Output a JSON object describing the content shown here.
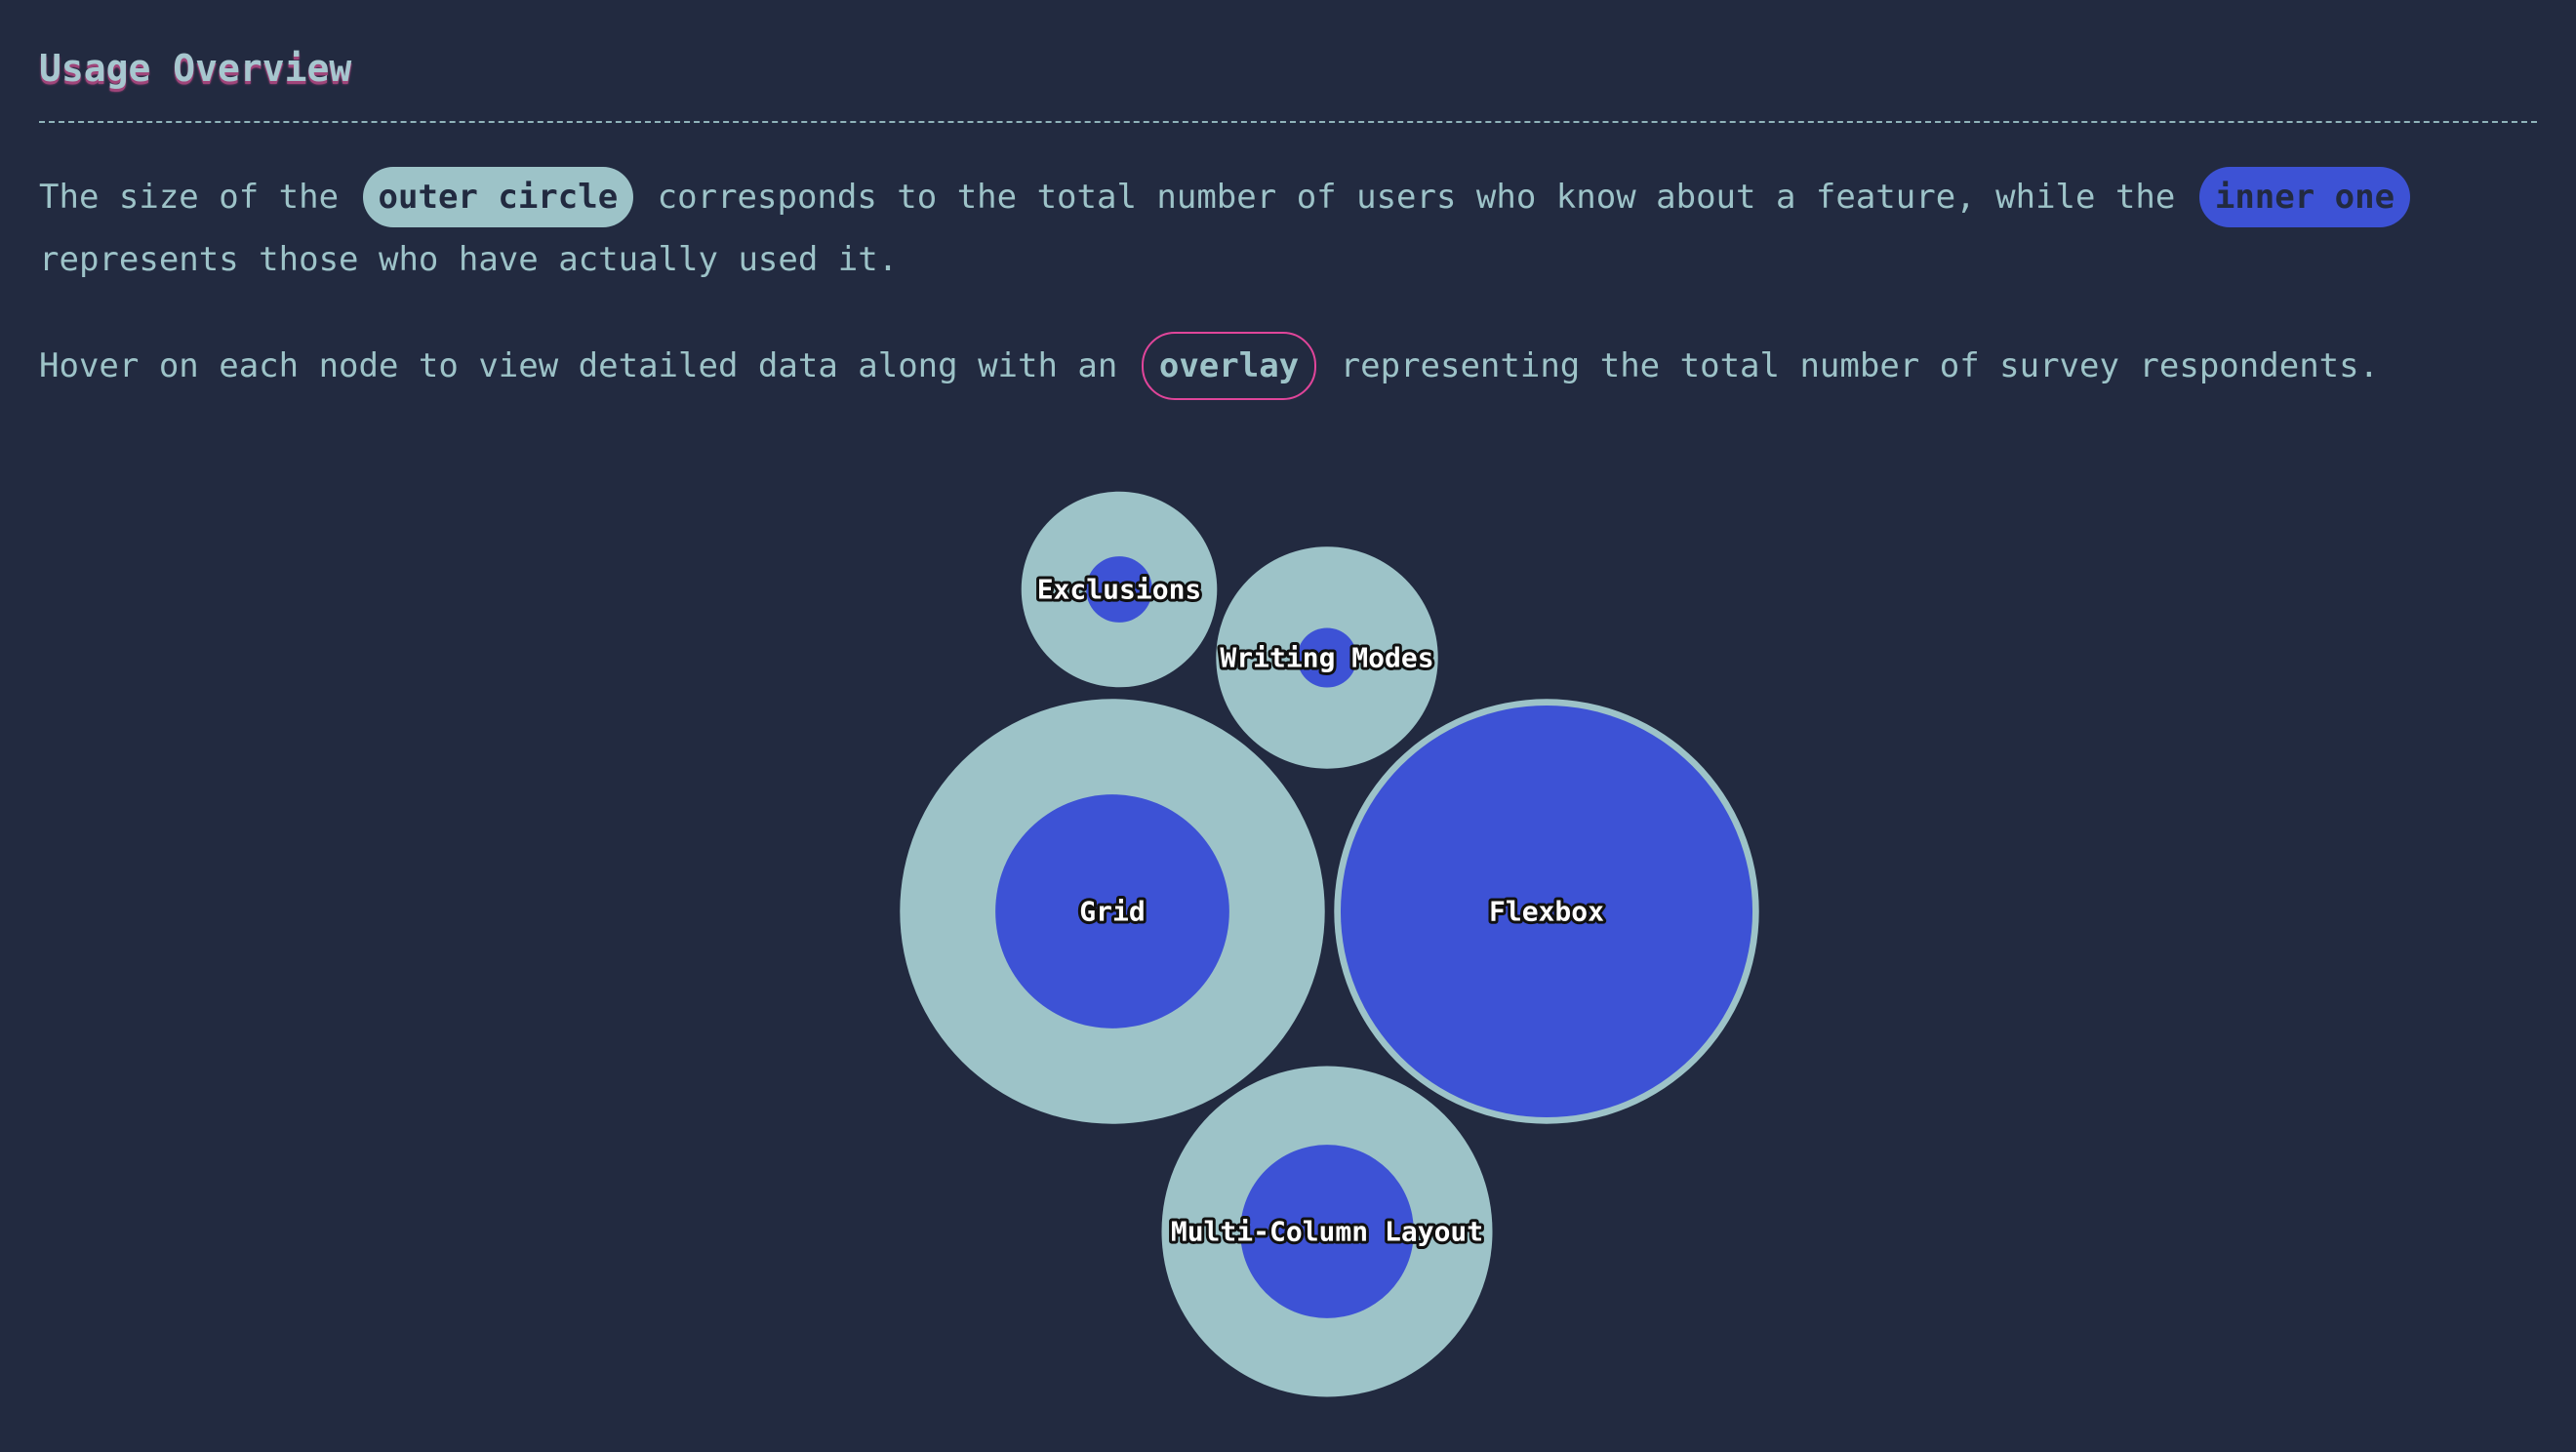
{
  "header": {
    "title": "Usage Overview"
  },
  "intro": {
    "p1_part1": "The size of the",
    "pill_outer": "outer circle",
    "p1_part2": "corresponds to the total number of users who know about a feature, while the",
    "pill_inner": "inner one",
    "p1_part3": "represents those who have actually used it.",
    "p2_part1": "Hover on each node to view detailed data along with an",
    "pill_overlay": "overlay",
    "p2_part2": "representing the total number of survey respondents."
  },
  "colors": {
    "background": "#222a40",
    "outer": "#9dc3c8",
    "inner": "#3d52d5",
    "overlay_accent": "#e0459a"
  },
  "chart_data": {
    "type": "bubble",
    "title": "",
    "nodes": [
      {
        "label": "Exclusions",
        "known_users": 14,
        "used_users": 1.6
      },
      {
        "label": "Writing Modes",
        "known_users": 18,
        "used_users": 1.3
      },
      {
        "label": "Grid",
        "known_users": 66,
        "used_users": 20
      },
      {
        "label": "Flexbox",
        "known_users": 66,
        "used_users": 62
      },
      {
        "label": "Multi-Column Layout",
        "known_users": 40,
        "used_users": 11
      }
    ]
  }
}
